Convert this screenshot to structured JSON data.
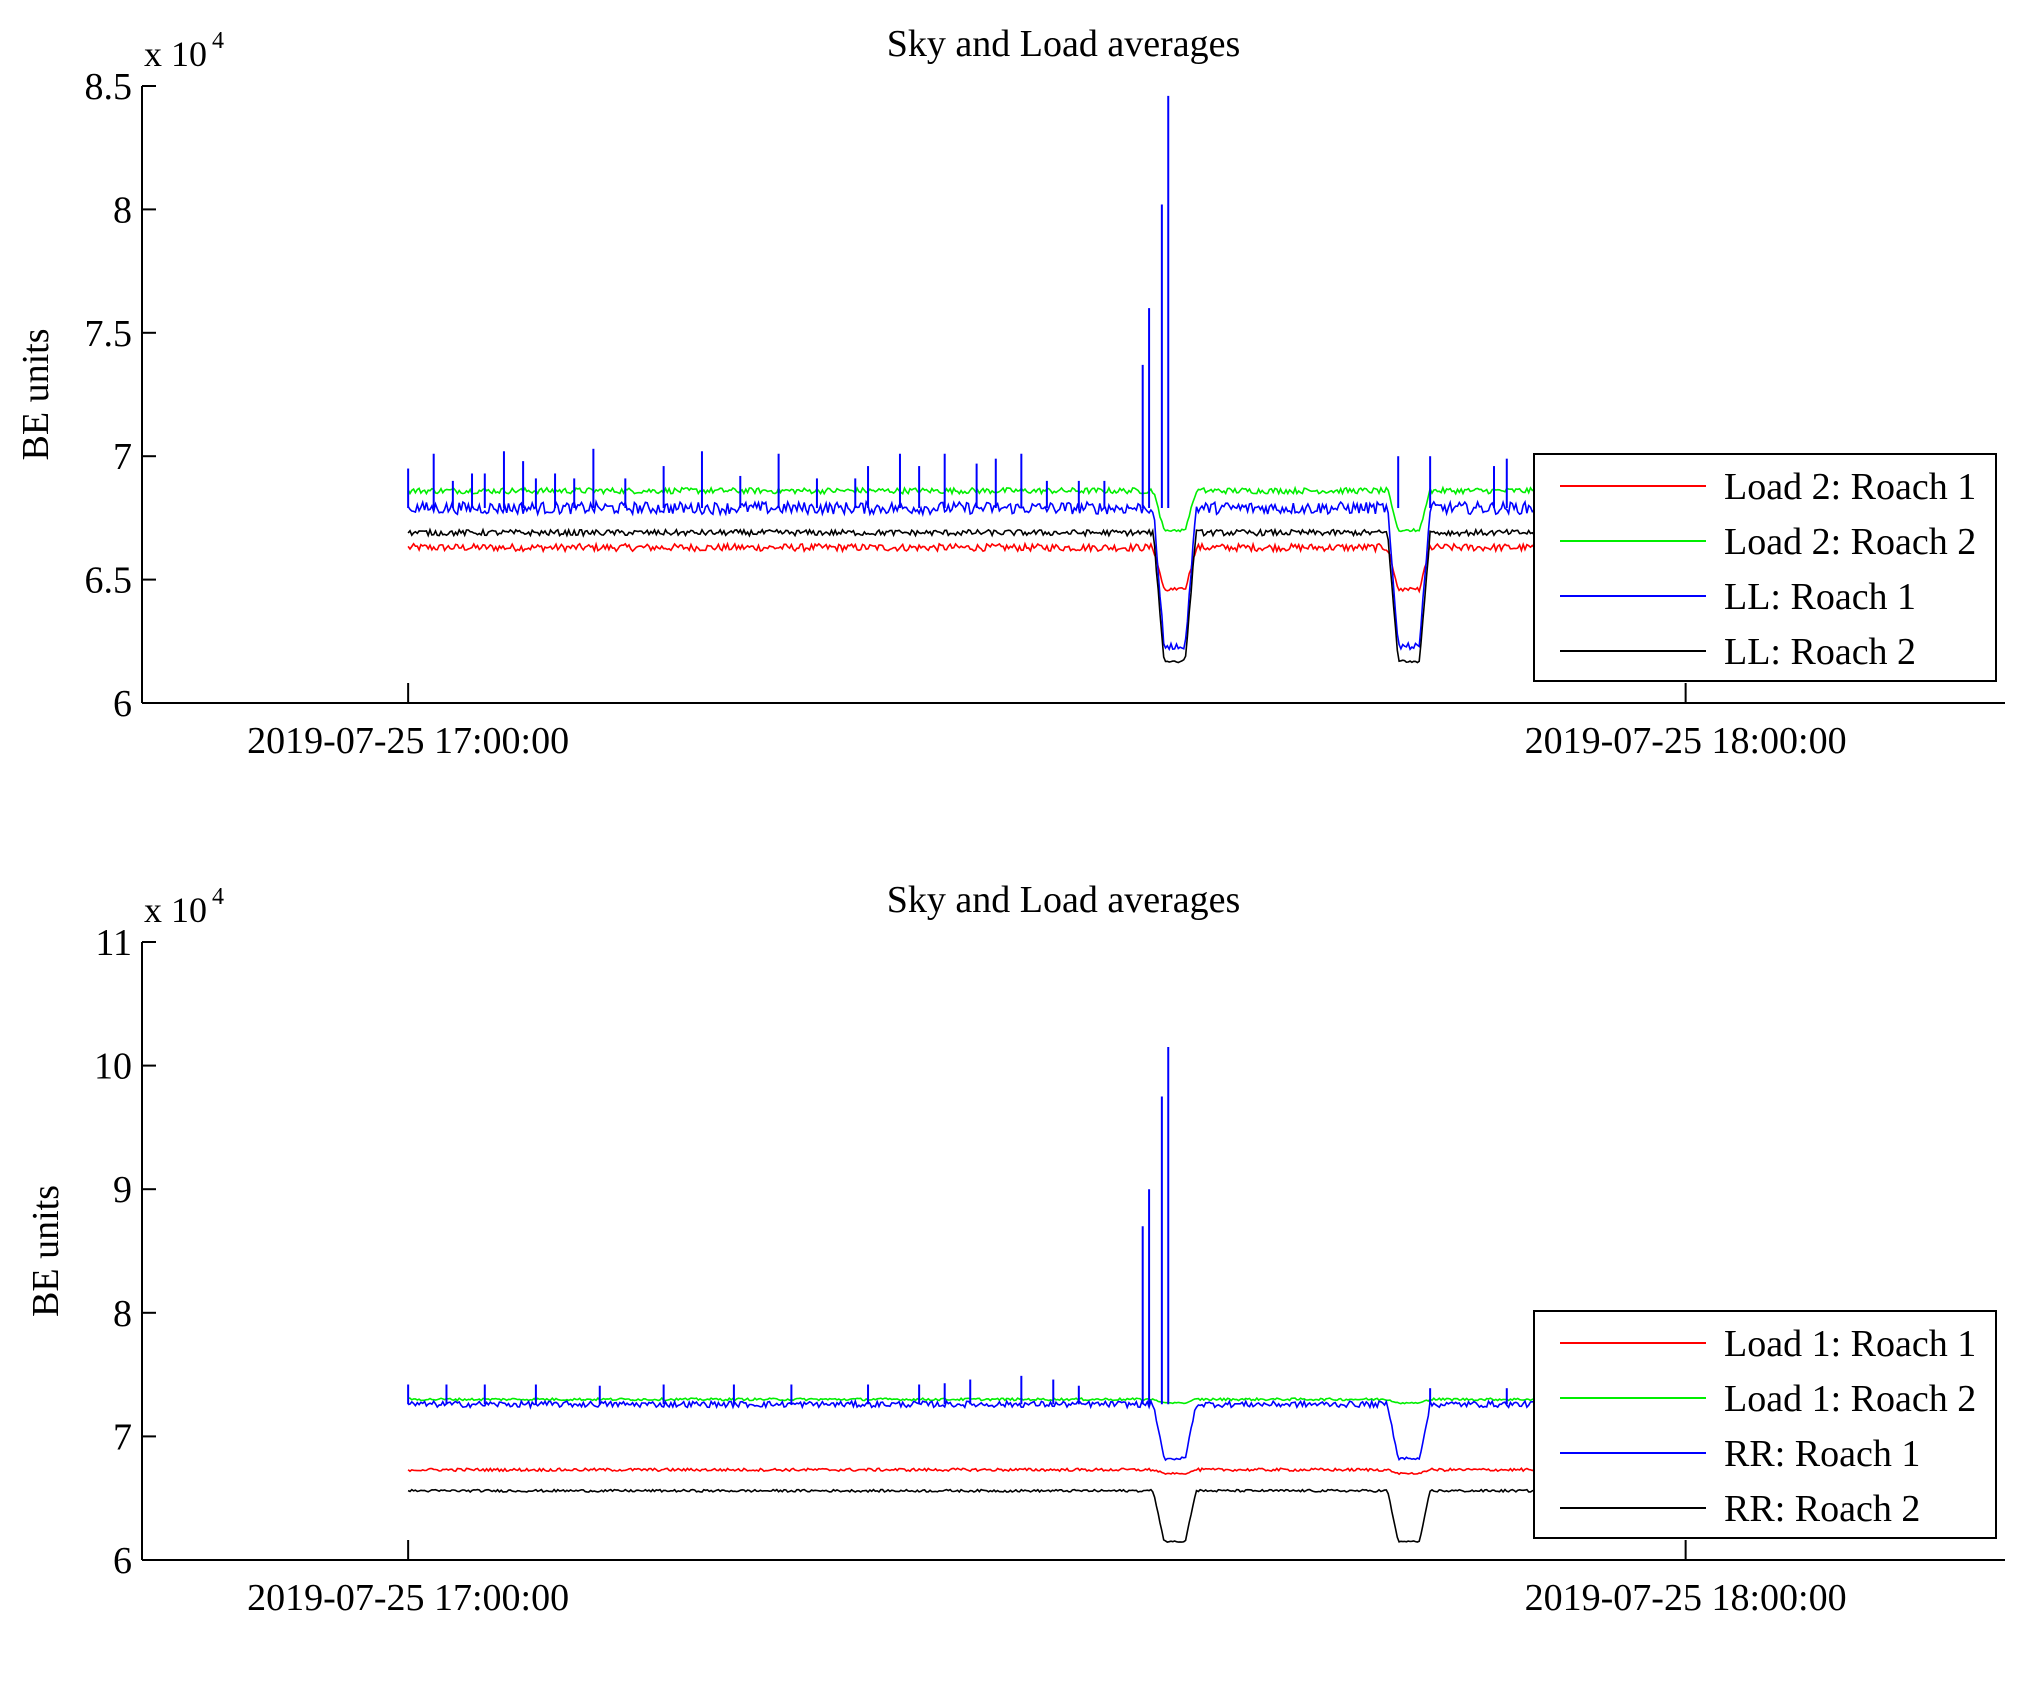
{
  "chart_data": [
    {
      "type": "line",
      "title": "Sky and Load averages",
      "ylabel": "BE units",
      "y_multiplier": "x 10",
      "y_multiplier_exponent": "4",
      "ylim": [
        60000,
        85000
      ],
      "yticks": [
        60000,
        65000,
        70000,
        75000,
        80000,
        85000
      ],
      "ytick_labels": [
        "6",
        "6.5",
        "7",
        "7.5",
        "8",
        "8.5"
      ],
      "xlim": [
        "2019-07-25 16:47:30",
        "2019-07-25 18:15:00"
      ],
      "xticks": [
        "2019-07-25 17:00:00",
        "2019-07-25 18:00:00"
      ],
      "xtick_labels": [
        "2019-07-25 17:00:00",
        "2019-07-25 18:00:00"
      ],
      "x_range_data": [
        "2019-07-25 17:00:00",
        "2019-07-25 18:00:00"
      ],
      "dips": [
        {
          "start": "2019-07-25 17:35:00",
          "end": "2019-07-25 17:37:00"
        },
        {
          "start": "2019-07-25 17:46:00",
          "end": "2019-07-25 17:48:00"
        }
      ],
      "legend_position": "bottom-right",
      "series": [
        {
          "name": "Load 2: Roach 1",
          "color": "#ff0000",
          "base": 66300,
          "dip": 64600,
          "noise": 150,
          "spikes": []
        },
        {
          "name": "Load 2: Roach 2",
          "color": "#00ee00",
          "base": 68600,
          "dip": 67000,
          "noise": 120,
          "spikes": []
        },
        {
          "name": "LL: Roach 1",
          "color": "#0000ff",
          "base": 67900,
          "dip": 62300,
          "noise": 250,
          "spikes": [
            [
              0.0,
              69500
            ],
            [
              0.02,
              70100
            ],
            [
              0.035,
              69000
            ],
            [
              0.05,
              69300
            ],
            [
              0.06,
              69300
            ],
            [
              0.075,
              70200
            ],
            [
              0.09,
              69800
            ],
            [
              0.1,
              69100
            ],
            [
              0.115,
              69300
            ],
            [
              0.13,
              69100
            ],
            [
              0.145,
              70300
            ],
            [
              0.17,
              69100
            ],
            [
              0.2,
              69600
            ],
            [
              0.23,
              70200
            ],
            [
              0.26,
              69200
            ],
            [
              0.29,
              70100
            ],
            [
              0.32,
              69100
            ],
            [
              0.35,
              69100
            ],
            [
              0.36,
              69600
            ],
            [
              0.385,
              70100
            ],
            [
              0.4,
              69600
            ],
            [
              0.42,
              70100
            ],
            [
              0.445,
              69700
            ],
            [
              0.46,
              69900
            ],
            [
              0.48,
              70100
            ],
            [
              0.5,
              69000
            ],
            [
              0.525,
              69000
            ],
            [
              0.545,
              69000
            ],
            [
              0.575,
              73700
            ],
            [
              0.58,
              76000
            ],
            [
              0.59,
              80200
            ],
            [
              0.595,
              84600
            ],
            [
              0.775,
              70000
            ],
            [
              0.8,
              70000
            ],
            [
              0.85,
              69600
            ],
            [
              0.86,
              69900
            ]
          ]
        },
        {
          "name": "LL: Roach 2",
          "color": "#000000",
          "base": 66900,
          "dip": 61700,
          "noise": 120,
          "spikes": []
        }
      ]
    },
    {
      "type": "line",
      "title": "Sky and Load averages",
      "ylabel": "BE units",
      "y_multiplier": "x 10",
      "y_multiplier_exponent": "4",
      "ylim": [
        60000,
        110000
      ],
      "yticks": [
        60000,
        70000,
        80000,
        90000,
        100000,
        110000
      ],
      "ytick_labels": [
        "6",
        "7",
        "8",
        "9",
        "10",
        "11"
      ],
      "xlim": [
        "2019-07-25 16:47:30",
        "2019-07-25 18:15:00"
      ],
      "xticks": [
        "2019-07-25 17:00:00",
        "2019-07-25 18:00:00"
      ],
      "xtick_labels": [
        "2019-07-25 17:00:00",
        "2019-07-25 18:00:00"
      ],
      "x_range_data": [
        "2019-07-25 17:00:00",
        "2019-07-25 18:00:00"
      ],
      "dips": [
        {
          "start": "2019-07-25 17:35:00",
          "end": "2019-07-25 17:37:00"
        },
        {
          "start": "2019-07-25 17:46:00",
          "end": "2019-07-25 17:48:00"
        }
      ],
      "legend_position": "bottom-right",
      "series": [
        {
          "name": "Load 1: Roach 1",
          "color": "#ff0000",
          "base": 67300,
          "dip": 67000,
          "noise": 120,
          "spikes": []
        },
        {
          "name": "Load 1: Roach 2",
          "color": "#00ee00",
          "base": 73000,
          "dip": 72700,
          "noise": 100,
          "spikes": []
        },
        {
          "name": "RR: Roach 1",
          "color": "#0000ff",
          "base": 72600,
          "dip": 68200,
          "noise": 250,
          "spikes": [
            [
              0.0,
              74200
            ],
            [
              0.03,
              74200
            ],
            [
              0.06,
              74200
            ],
            [
              0.1,
              74200
            ],
            [
              0.15,
              74100
            ],
            [
              0.2,
              74200
            ],
            [
              0.255,
              74200
            ],
            [
              0.3,
              74200
            ],
            [
              0.36,
              74200
            ],
            [
              0.4,
              74200
            ],
            [
              0.42,
              74300
            ],
            [
              0.44,
              74600
            ],
            [
              0.48,
              74900
            ],
            [
              0.505,
              74600
            ],
            [
              0.525,
              74100
            ],
            [
              0.575,
              87000
            ],
            [
              0.58,
              90000
            ],
            [
              0.59,
              97500
            ],
            [
              0.595,
              101500
            ],
            [
              0.8,
              73900
            ],
            [
              0.86,
              73900
            ]
          ]
        },
        {
          "name": "RR: Roach 2",
          "color": "#000000",
          "base": 65600,
          "dip": 61500,
          "noise": 100,
          "spikes": []
        }
      ]
    }
  ]
}
